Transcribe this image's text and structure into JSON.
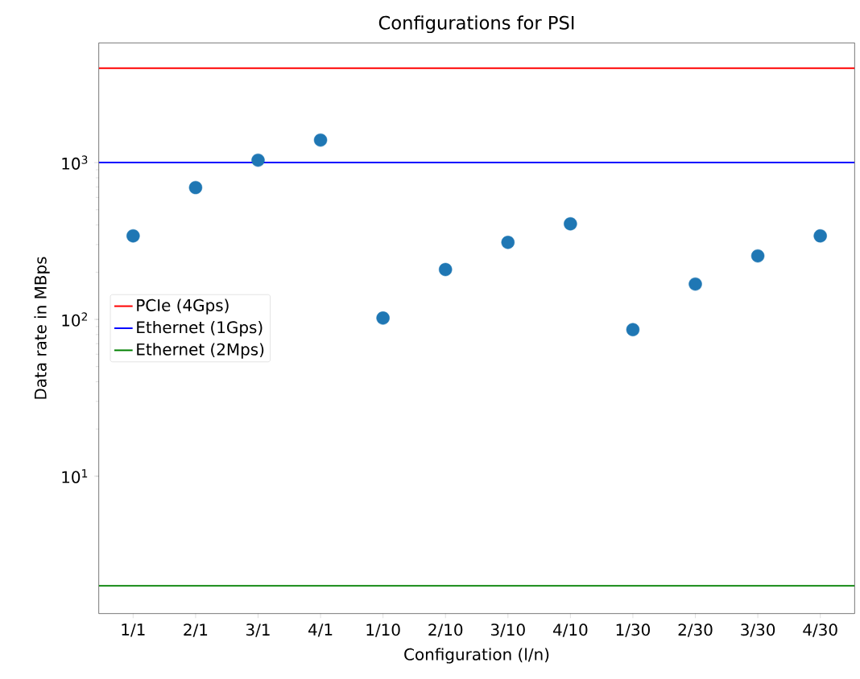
{
  "chart_data": {
    "type": "scatter",
    "title": "Configurations for PSI",
    "xlabel": "Configuration (l/n)",
    "ylabel": "Data rate in MBps",
    "categories": [
      "1/1",
      "2/1",
      "3/1",
      "4/1",
      "1/10",
      "2/10",
      "3/10",
      "4/10",
      "1/30",
      "2/30",
      "3/30",
      "4/30"
    ],
    "values": [
      341,
      693,
      1036,
      1392,
      102,
      208,
      310,
      407,
      86,
      168,
      254,
      341
    ],
    "color": "#1f77b4",
    "log": "y",
    "ylim": [
      1.33,
      5800
    ],
    "yticks": [
      {
        "value": 10,
        "label": "10$^{1}$"
      },
      {
        "value": 100,
        "label": "10$^{2}$"
      },
      {
        "value": 1000,
        "label": "10$^{3}$"
      }
    ],
    "ref_lines": [
      {
        "axis": "y",
        "value": 4000,
        "label": "PCIe (4Gps)",
        "color": "#ff0000"
      },
      {
        "axis": "y",
        "value": 1000,
        "label": "Ethernet (1Gps)",
        "color": "#0000ff"
      },
      {
        "axis": "y",
        "value": 2,
        "label": "Ethernet (2Mps)",
        "color": "#008000"
      }
    ],
    "legend": "center left",
    "grid": false
  }
}
